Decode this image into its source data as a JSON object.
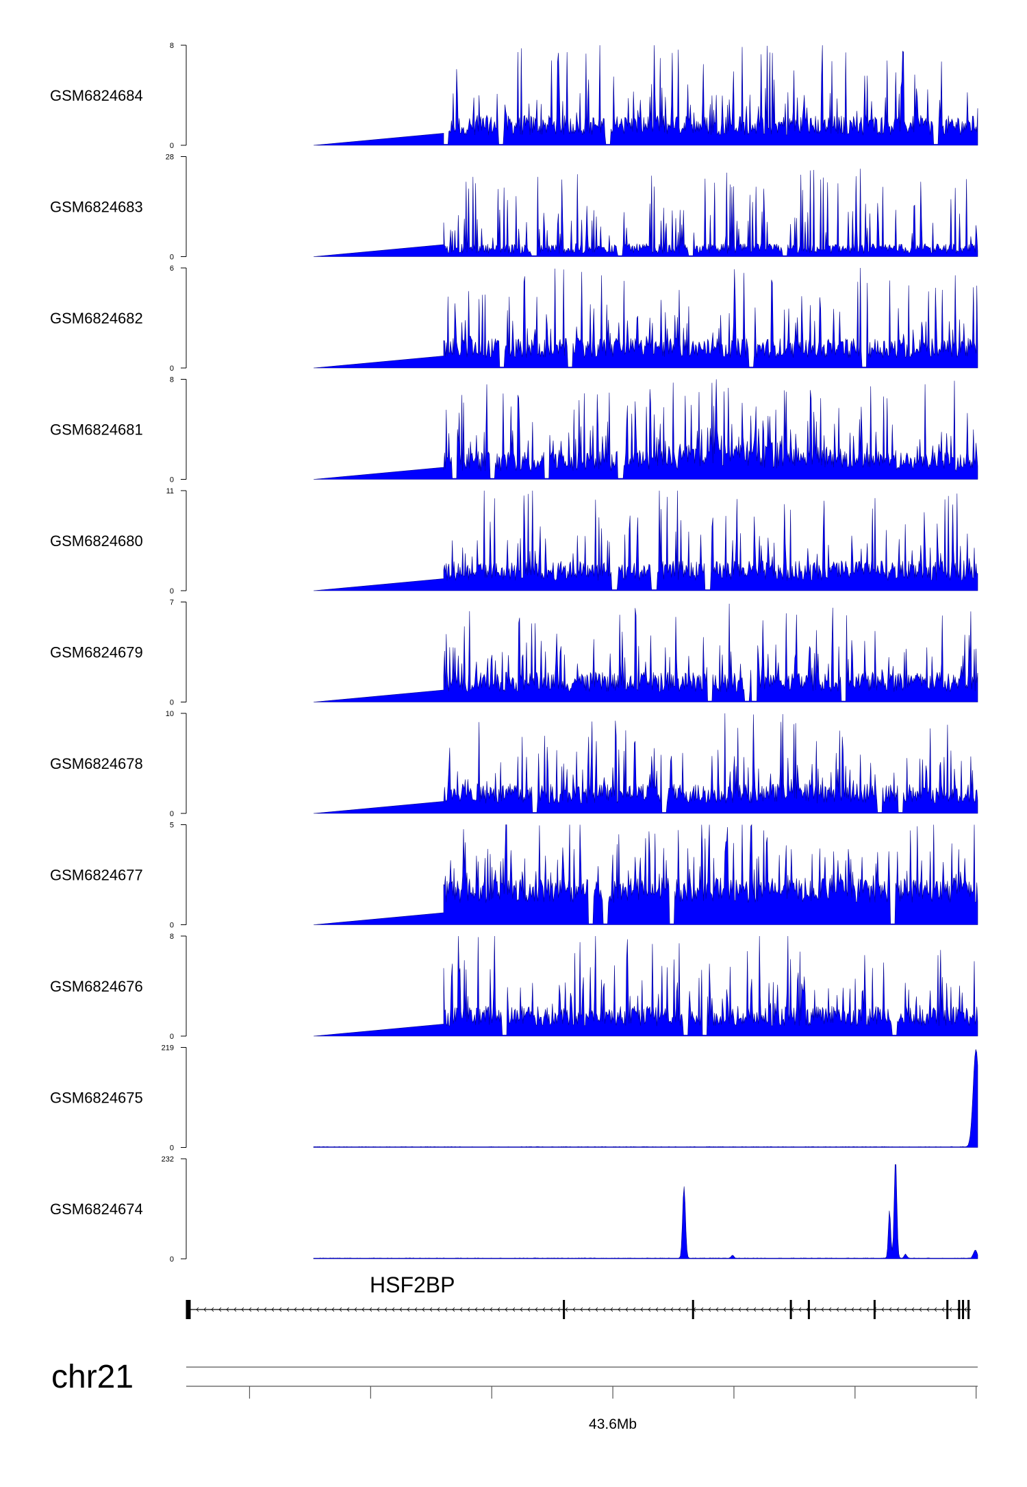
{
  "chart_data": {
    "type": "area",
    "color": "#0000ff",
    "tracks": [
      {
        "name": "GSM6824684",
        "ylim": [
          0,
          8
        ],
        "profile": "uniform"
      },
      {
        "name": "GSM6824683",
        "ylim": [
          0,
          28
        ],
        "profile": "sparse"
      },
      {
        "name": "GSM6824682",
        "ylim": [
          0,
          6
        ],
        "profile": "uniform"
      },
      {
        "name": "GSM6824681",
        "ylim": [
          0,
          8
        ],
        "profile": "midpeak"
      },
      {
        "name": "GSM6824680",
        "ylim": [
          0,
          11
        ],
        "profile": "uniform"
      },
      {
        "name": "GSM6824679",
        "ylim": [
          0,
          7
        ],
        "profile": "uniform"
      },
      {
        "name": "GSM6824678",
        "ylim": [
          0,
          10
        ],
        "profile": "uniform"
      },
      {
        "name": "GSM6824677",
        "ylim": [
          0,
          5
        ],
        "profile": "dense"
      },
      {
        "name": "GSM6824676",
        "ylim": [
          0,
          8
        ],
        "profile": "uniform"
      },
      {
        "name": "GSM6824675",
        "ylim": [
          0,
          219
        ],
        "profile": "endpeak"
      },
      {
        "name": "GSM6824674",
        "ylim": [
          0,
          232
        ],
        "profile": "peaks"
      }
    ],
    "gene": {
      "name": "HSF2BP",
      "strand": "-",
      "exon_positions": [
        0.0,
        0.48,
        0.645,
        0.77,
        0.793,
        0.877,
        0.97,
        0.985,
        0.99,
        0.997
      ]
    },
    "chromosome": "chr21",
    "axis": {
      "label": "43.6Mb",
      "label_tick_index": 3,
      "tick_positions": [
        0.08,
        0.233,
        0.386,
        0.539,
        0.692,
        0.845,
        0.998
      ]
    }
  }
}
